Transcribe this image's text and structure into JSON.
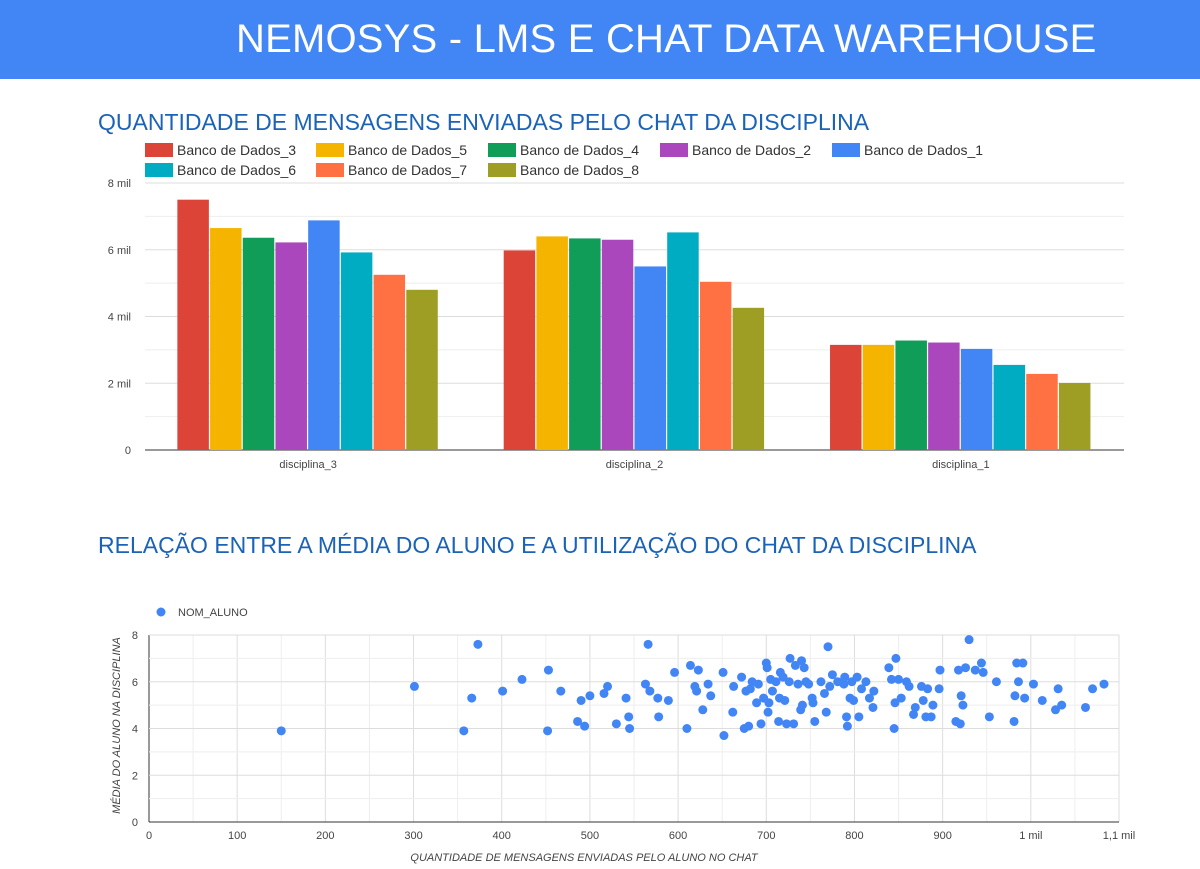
{
  "header": {
    "title": "NEMOSYS - LMS E CHAT DATA WAREHOUSE"
  },
  "colors": {
    "header_bg": "#4285f4",
    "title_text": "#1a63b8",
    "series": [
      "#db4437",
      "#f4b400",
      "#0f9d58",
      "#ab47bc",
      "#4285f4",
      "#00acc1",
      "#ff7043",
      "#9e9d24"
    ],
    "scatter": "#4285f4"
  },
  "chart_data": [
    {
      "type": "bar",
      "title": "QUANTIDADE DE MENSAGENS ENVIADAS PELO CHAT DA DISCIPLINA",
      "categories": [
        "disciplina_3",
        "disciplina_2",
        "disciplina_1"
      ],
      "series": [
        {
          "name": "Banco de Dados_3",
          "values": [
            7500,
            5980,
            3150
          ]
        },
        {
          "name": "Banco de Dados_5",
          "values": [
            6650,
            6400,
            3150
          ]
        },
        {
          "name": "Banco de Dados_4",
          "values": [
            6360,
            6340,
            3280
          ]
        },
        {
          "name": "Banco de Dados_2",
          "values": [
            6220,
            6300,
            3220
          ]
        },
        {
          "name": "Banco de Dados_1",
          "values": [
            6880,
            5500,
            3030
          ]
        },
        {
          "name": "Banco de Dados_6",
          "values": [
            5920,
            6520,
            2550
          ]
        },
        {
          "name": "Banco de Dados_7",
          "values": [
            5250,
            5040,
            2280
          ]
        },
        {
          "name": "Banco de Dados_8",
          "values": [
            4800,
            4260,
            2010
          ]
        }
      ],
      "yticks": [
        {
          "value": 0,
          "label": "0"
        },
        {
          "value": 2000,
          "label": "2 mil"
        },
        {
          "value": 4000,
          "label": "4 mil"
        },
        {
          "value": 6000,
          "label": "6 mil"
        },
        {
          "value": 8000,
          "label": "8 mil"
        }
      ],
      "ylim": [
        0,
        8000
      ],
      "grid": true,
      "legend": "top"
    },
    {
      "type": "scatter",
      "title": "RELAÇÃO ENTRE A MÉDIA DO ALUNO E A UTILIZAÇÃO DO CHAT DA DISCIPLINA",
      "xlabel": "QUANTIDADE DE MENSAGENS ENVIADAS PELO ALUNO NO CHAT",
      "ylabel": "MÉDIA DO ALUNO NA DISCIPLINA",
      "xlim": [
        0,
        1100
      ],
      "ylim": [
        0,
        8
      ],
      "xticks": [
        {
          "value": 0,
          "label": "0"
        },
        {
          "value": 100,
          "label": "100"
        },
        {
          "value": 200,
          "label": "200"
        },
        {
          "value": 300,
          "label": "300"
        },
        {
          "value": 400,
          "label": "400"
        },
        {
          "value": 500,
          "label": "500"
        },
        {
          "value": 600,
          "label": "600"
        },
        {
          "value": 700,
          "label": "700"
        },
        {
          "value": 800,
          "label": "800"
        },
        {
          "value": 900,
          "label": "900"
        },
        {
          "value": 1000,
          "label": "1 mil"
        },
        {
          "value": 1100,
          "label": "1,1 mil"
        }
      ],
      "yticks": [
        {
          "value": 0,
          "label": "0"
        },
        {
          "value": 2,
          "label": "2"
        },
        {
          "value": 4,
          "label": "4"
        },
        {
          "value": 6,
          "label": "6"
        },
        {
          "value": 8,
          "label": "8"
        }
      ],
      "grid": true,
      "legend": "top-left",
      "series": [
        {
          "name": "NOM_ALUNO",
          "points": [
            [
              150,
              3.9
            ],
            [
              301,
              5.8
            ],
            [
              357,
              3.9
            ],
            [
              366,
              5.3
            ],
            [
              373,
              7.6
            ],
            [
              401,
              5.6
            ],
            [
              423,
              6.1
            ],
            [
              452,
              3.9
            ],
            [
              453,
              6.5
            ],
            [
              467,
              5.6
            ],
            [
              486,
              4.3
            ],
            [
              490,
              5.2
            ],
            [
              494,
              4.1
            ],
            [
              500,
              5.4
            ],
            [
              516,
              5.5
            ],
            [
              520,
              5.8
            ],
            [
              530,
              4.2
            ],
            [
              541,
              5.3
            ],
            [
              544,
              4.5
            ],
            [
              545,
              4.0
            ],
            [
              563,
              5.9
            ],
            [
              566,
              7.6
            ],
            [
              568,
              5.6
            ],
            [
              577,
              5.3
            ],
            [
              578,
              4.5
            ],
            [
              589,
              5.2
            ],
            [
              596,
              6.4
            ],
            [
              610,
              4.0
            ],
            [
              614,
              6.7
            ],
            [
              619,
              5.8
            ],
            [
              621,
              5.6
            ],
            [
              623,
              6.5
            ],
            [
              628,
              4.8
            ],
            [
              634,
              5.9
            ],
            [
              637,
              5.4
            ],
            [
              651,
              6.4
            ],
            [
              652,
              3.7
            ],
            [
              662,
              4.7
            ],
            [
              663,
              5.8
            ],
            [
              672,
              6.2
            ],
            [
              675,
              4.0
            ],
            [
              677,
              5.6
            ],
            [
              680,
              4.1
            ],
            [
              682,
              5.7
            ],
            [
              684,
              6.0
            ],
            [
              689,
              5.1
            ],
            [
              691,
              5.9
            ],
            [
              694,
              4.2
            ],
            [
              697,
              5.3
            ],
            [
              700,
              6.8
            ],
            [
              701,
              6.6
            ],
            [
              702,
              4.7
            ],
            [
              703,
              5.1
            ],
            [
              705,
              6.1
            ],
            [
              707,
              5.6
            ],
            [
              711,
              6.0
            ],
            [
              714,
              4.3
            ],
            [
              715,
              5.3
            ],
            [
              716,
              6.4
            ],
            [
              719,
              6.2
            ],
            [
              721,
              5.2
            ],
            [
              723,
              4.2
            ],
            [
              726,
              6.0
            ],
            [
              727,
              7.0
            ],
            [
              731,
              4.2
            ],
            [
              733,
              6.7
            ],
            [
              736,
              5.9
            ],
            [
              739,
              4.8
            ],
            [
              740,
              6.9
            ],
            [
              741,
              5.0
            ],
            [
              743,
              6.6
            ],
            [
              745,
              6.0
            ],
            [
              748,
              5.9
            ],
            [
              752,
              5.3
            ],
            [
              753,
              5.1
            ],
            [
              755,
              4.3
            ],
            [
              762,
              6.0
            ],
            [
              766,
              5.5
            ],
            [
              768,
              4.7
            ],
            [
              770,
              7.5
            ],
            [
              772,
              5.8
            ],
            [
              775,
              6.3
            ],
            [
              781,
              6.0
            ],
            [
              788,
              5.9
            ],
            [
              789,
              6.2
            ],
            [
              791,
              4.5
            ],
            [
              792,
              4.1
            ],
            [
              795,
              5.3
            ],
            [
              797,
              6.0
            ],
            [
              799,
              5.2
            ],
            [
              803,
              6.2
            ],
            [
              805,
              4.5
            ],
            [
              808,
              5.7
            ],
            [
              813,
              6.0
            ],
            [
              817,
              5.3
            ],
            [
              821,
              4.9
            ],
            [
              822,
              5.6
            ],
            [
              839,
              6.6
            ],
            [
              842,
              6.1
            ],
            [
              845,
              4.0
            ],
            [
              846,
              5.1
            ],
            [
              847,
              7.0
            ],
            [
              850,
              6.1
            ],
            [
              853,
              5.3
            ],
            [
              859,
              6.0
            ],
            [
              862,
              5.8
            ],
            [
              867,
              4.6
            ],
            [
              869,
              4.9
            ],
            [
              876,
              5.8
            ],
            [
              878,
              5.2
            ],
            [
              881,
              4.5
            ],
            [
              883,
              5.7
            ],
            [
              887,
              4.5
            ],
            [
              889,
              5.0
            ],
            [
              896,
              5.7
            ],
            [
              897,
              6.5
            ],
            [
              915,
              4.3
            ],
            [
              918,
              6.5
            ],
            [
              920,
              4.2
            ],
            [
              921,
              5.4
            ],
            [
              923,
              5.0
            ],
            [
              926,
              6.6
            ],
            [
              930,
              7.8
            ],
            [
              937,
              6.5
            ],
            [
              944,
              6.8
            ],
            [
              946,
              6.4
            ],
            [
              953,
              4.5
            ],
            [
              961,
              6.0
            ],
            [
              981,
              4.3
            ],
            [
              982,
              5.4
            ],
            [
              984,
              6.8
            ],
            [
              986,
              6.0
            ],
            [
              991,
              6.8
            ],
            [
              993,
              5.3
            ],
            [
              1003,
              5.9
            ],
            [
              1013,
              5.2
            ],
            [
              1028,
              4.8
            ],
            [
              1031,
              5.7
            ],
            [
              1035,
              5.0
            ],
            [
              1062,
              4.9
            ],
            [
              1070,
              5.7
            ],
            [
              1083,
              5.9
            ]
          ]
        }
      ]
    }
  ]
}
